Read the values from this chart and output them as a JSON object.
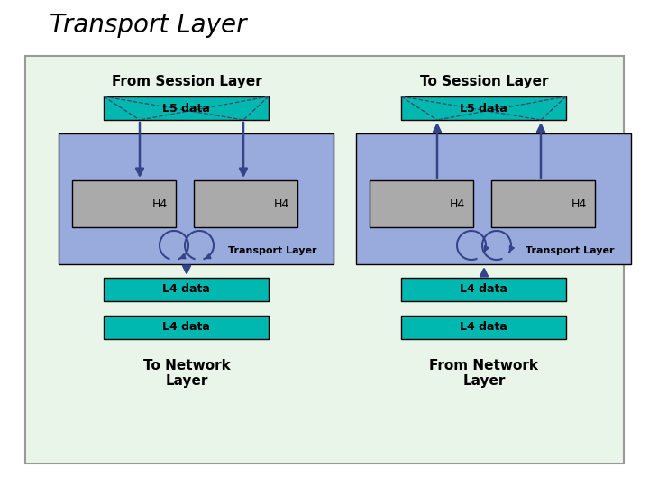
{
  "title": "Transport Layer",
  "title_fontsize": 20,
  "bg_outer": "#e8f5e8",
  "blue_box_color": "#99aadd",
  "teal_box_color": "#00b8b0",
  "gray_box_color": "#aaaaaa",
  "left_label_top": "From Session Layer",
  "right_label_top": "To Session Layer",
  "left_label_bottom1": "To Network",
  "left_label_bottom2": "Layer",
  "right_label_bottom1": "From Network",
  "right_label_bottom2": "Layer",
  "h4_label": "H4",
  "transport_layer_label": "Transport Layer",
  "l5_label": "L5 data",
  "l4_label": "L4 data",
  "arrow_color": "#334488",
  "circ_arrow_color": "#334488"
}
